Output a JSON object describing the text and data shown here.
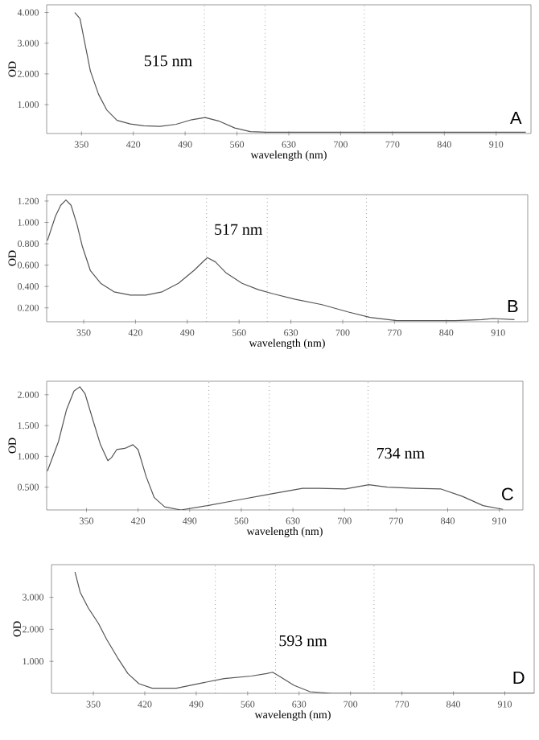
{
  "chart_data": [
    {
      "type": "line",
      "color": "#555555",
      "marker": "none",
      "line_style": "solid",
      "xlabel": "wavelength (nm)",
      "ylabel": "OD",
      "xlim": [
        303,
        957
      ],
      "xticks": [
        350,
        420,
        490,
        560,
        630,
        700,
        770,
        840,
        910
      ],
      "ylim": [
        0.06,
        4.25
      ],
      "yticks": [
        {
          "value": 1,
          "label": "1.000"
        },
        {
          "value": 2,
          "label": "2.000"
        },
        {
          "value": 3,
          "label": "3.000"
        },
        {
          "value": 4,
          "label": "4.000"
        }
      ],
      "x": [
        341,
        348,
        355,
        362,
        373,
        384,
        398,
        416,
        434,
        456,
        478,
        499,
        517,
        535,
        557,
        578,
        600,
        700,
        800,
        950
      ],
      "values": [
        4.0,
        3.8,
        2.95,
        2.1,
        1.34,
        0.83,
        0.49,
        0.37,
        0.31,
        0.29,
        0.36,
        0.51,
        0.58,
        0.47,
        0.24,
        0.12,
        0.1,
        0.1,
        0.1,
        0.1
      ],
      "ref_lines": [
        {
          "axis": "x",
          "value": 516,
          "line_style": "dotted"
        },
        {
          "axis": "x",
          "value": 598,
          "line_style": "dotted"
        },
        {
          "axis": "x",
          "value": 732,
          "line_style": "dotted"
        }
      ],
      "annotations": [
        "515 nm",
        "A"
      ]
    },
    {
      "type": "line",
      "color": "#555555",
      "marker": "none",
      "line_style": "solid",
      "xlabel": "wavelength (nm)",
      "ylabel": "OD",
      "xlim": [
        300,
        950
      ],
      "xticks": [
        350,
        420,
        490,
        560,
        630,
        700,
        770,
        840,
        910
      ],
      "ylim": [
        0.07,
        1.26
      ],
      "yticks": [
        {
          "value": 0.2,
          "label": "0.200"
        },
        {
          "value": 0.4,
          "label": "0.400"
        },
        {
          "value": 0.6,
          "label": "0.600"
        },
        {
          "value": 0.8,
          "label": "0.800"
        },
        {
          "value": 1.0,
          "label": "1.000"
        },
        {
          "value": 1.2,
          "label": "1.200"
        }
      ],
      "x": [
        301,
        312,
        319,
        326,
        333,
        341,
        348,
        359,
        373,
        391,
        413,
        434,
        456,
        478,
        499,
        517,
        528,
        542,
        564,
        586,
        607,
        636,
        672,
        708,
        737,
        773,
        816,
        852,
        888,
        903,
        932
      ],
      "values": [
        0.83,
        1.06,
        1.16,
        1.21,
        1.16,
        0.98,
        0.78,
        0.55,
        0.43,
        0.35,
        0.32,
        0.32,
        0.35,
        0.43,
        0.55,
        0.67,
        0.63,
        0.53,
        0.43,
        0.37,
        0.33,
        0.28,
        0.23,
        0.16,
        0.11,
        0.08,
        0.08,
        0.08,
        0.09,
        0.1,
        0.09
      ],
      "ref_lines": [
        {
          "axis": "x",
          "value": 516,
          "line_style": "dotted"
        },
        {
          "axis": "x",
          "value": 598,
          "line_style": "dotted"
        },
        {
          "axis": "x",
          "value": 732,
          "line_style": "dotted"
        }
      ],
      "annotations": [
        {
          "text": "517 nm",
          "x": 517,
          "y": 0.67
        },
        "B"
      ]
    },
    {
      "type": "line",
      "color": "#555555",
      "marker": "none",
      "line_style": "solid",
      "xlabel": "wavelength (nm)",
      "ylabel": "OD",
      "xlim": [
        296,
        942
      ],
      "xticks": [
        350,
        420,
        490,
        560,
        630,
        700,
        770,
        840,
        910
      ],
      "ylim": [
        0.13,
        2.22
      ],
      "yticks": [
        {
          "value": 0.5,
          "label": "0.500"
        },
        {
          "value": 1.0,
          "label": "1.000"
        },
        {
          "value": 1.5,
          "label": "1.500"
        },
        {
          "value": 2.0,
          "label": "2.000"
        }
      ],
      "x": [
        297,
        312,
        323,
        333,
        341,
        348,
        359,
        369,
        379,
        384,
        391,
        402,
        413,
        420,
        431,
        442,
        456,
        478,
        514,
        550,
        600,
        643,
        665,
        701,
        733,
        758,
        795,
        831,
        860,
        888,
        915
      ],
      "values": [
        0.76,
        1.24,
        1.76,
        2.06,
        2.13,
        2.02,
        1.58,
        1.19,
        0.93,
        0.98,
        1.11,
        1.13,
        1.19,
        1.11,
        0.67,
        0.33,
        0.18,
        0.13,
        0.2,
        0.28,
        0.39,
        0.48,
        0.48,
        0.47,
        0.54,
        0.5,
        0.48,
        0.47,
        0.35,
        0.2,
        0.14
      ],
      "ref_lines": [
        {
          "axis": "x",
          "value": 516,
          "line_style": "dotted"
        },
        {
          "axis": "x",
          "value": 598,
          "line_style": "dotted"
        },
        {
          "axis": "x",
          "value": 732,
          "line_style": "dotted"
        }
      ],
      "annotations": [
        {
          "text": "734 nm",
          "x": 734,
          "y": 0.54
        },
        "C"
      ]
    },
    {
      "type": "line",
      "color": "#555555",
      "marker": "none",
      "line_style": "solid",
      "xlabel": "wavelength (nm)",
      "ylabel": "OD",
      "xlim": [
        293,
        950
      ],
      "xticks": [
        350,
        420,
        490,
        560,
        630,
        700,
        770,
        840,
        910
      ],
      "ylim": [
        0,
        4.02
      ],
      "yticks": [
        {
          "value": 1,
          "label": "1.000"
        },
        {
          "value": 2,
          "label": "2.000"
        },
        {
          "value": 3,
          "label": "3.000"
        }
      ],
      "x": [
        325,
        332,
        343,
        357,
        368,
        383,
        397,
        412,
        430,
        463,
        499,
        528,
        565,
        586,
        594,
        605,
        623,
        645,
        674,
        699,
        800,
        950
      ],
      "values": [
        3.79,
        3.16,
        2.67,
        2.18,
        1.69,
        1.11,
        0.62,
        0.3,
        0.16,
        0.16,
        0.33,
        0.46,
        0.54,
        0.62,
        0.66,
        0.51,
        0.25,
        0.05,
        0,
        0,
        0,
        0
      ],
      "ref_lines": [
        {
          "axis": "x",
          "value": 516,
          "line_style": "dotted"
        },
        {
          "axis": "x",
          "value": 598,
          "line_style": "dotted"
        },
        {
          "axis": "x",
          "value": 732,
          "line_style": "dotted"
        }
      ],
      "annotations": [
        {
          "text": "593 nm",
          "x": 593,
          "y": 0.66
        },
        "D"
      ]
    }
  ]
}
